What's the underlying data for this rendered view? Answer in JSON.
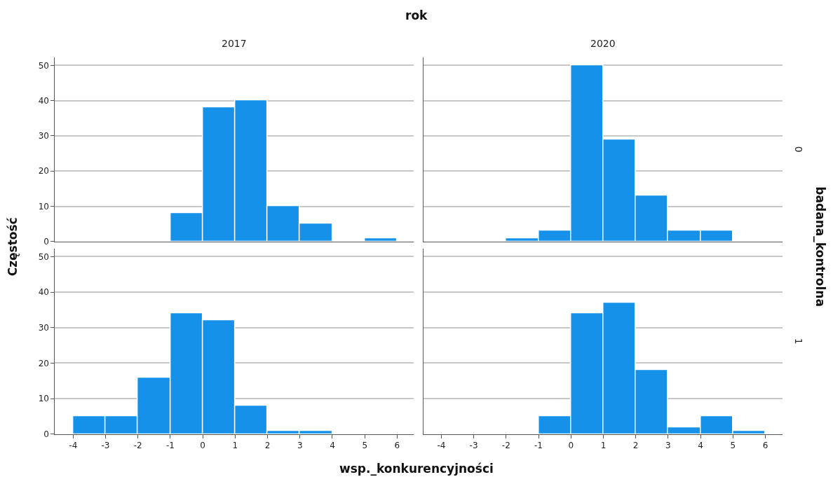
{
  "chart_data": [
    {
      "type": "histogram",
      "title": "2017",
      "bins": [
        -4,
        -3,
        -2,
        -1,
        0,
        1,
        2,
        3,
        4,
        5,
        6
      ],
      "values": [
        0,
        0,
        0,
        8,
        38,
        40,
        10,
        5,
        0,
        1
      ],
      "color": "#1591e9",
      "xlim": [
        -4.56,
        6.52
      ],
      "xticks": [
        -4,
        -3,
        -2,
        -1,
        0,
        1,
        2,
        3,
        4,
        5,
        6
      ],
      "ylim": [
        0,
        52.2
      ],
      "yticks": [
        0,
        10,
        20,
        30,
        40,
        50
      ],
      "grid": "y",
      "tick_labels": "y",
      "annotations": [
        "rok",
        "wsp._konkurencyjności",
        "Częstość",
        "badana_kontrolna"
      ]
    },
    {
      "type": "histogram",
      "title": "2020",
      "y2label": "0",
      "bins": [
        -4,
        -3,
        -2,
        -1,
        0,
        1,
        2,
        3,
        4,
        5,
        6
      ],
      "values": [
        0,
        0,
        1,
        3,
        50,
        29,
        13,
        3,
        3,
        0
      ],
      "color": "#1591e9",
      "xlim": [
        -4.56,
        6.52
      ],
      "xticks": [
        -4,
        -3,
        -2,
        -1,
        0,
        1,
        2,
        3,
        4,
        5,
        6
      ],
      "ylim": [
        0,
        52.2
      ],
      "yticks": [
        0,
        10,
        20,
        30,
        40,
        50
      ],
      "grid": "y",
      "tick_labels": false
    },
    {
      "type": "histogram",
      "bins": [
        -4,
        -3,
        -2,
        -1,
        0,
        1,
        2,
        3,
        4,
        5,
        6
      ],
      "values": [
        5,
        5,
        16,
        34,
        32,
        8,
        1,
        1,
        0,
        0
      ],
      "color": "#1591e9",
      "xlim": [
        -4.56,
        6.52
      ],
      "xticks": [
        -4,
        -3,
        -2,
        -1,
        0,
        1,
        2,
        3,
        4,
        5,
        6
      ],
      "ylim": [
        0,
        52.2
      ],
      "yticks": [
        0,
        10,
        20,
        30,
        40,
        50
      ],
      "grid": "y"
    },
    {
      "type": "histogram",
      "y2label": "1",
      "bins": [
        -4,
        -3,
        -2,
        -1,
        0,
        1,
        2,
        3,
        4,
        5,
        6
      ],
      "values": [
        0,
        0,
        0,
        5,
        34,
        37,
        18,
        2,
        5,
        1
      ],
      "color": "#1591e9",
      "xlim": [
        -4.56,
        6.52
      ],
      "xticks": [
        -4,
        -3,
        -2,
        -1,
        0,
        1,
        2,
        3,
        4,
        5,
        6
      ],
      "ylim": [
        0,
        52.2
      ],
      "yticks": [
        0,
        10,
        20,
        30,
        40,
        50
      ],
      "grid": "y",
      "tick_labels": "x"
    }
  ]
}
